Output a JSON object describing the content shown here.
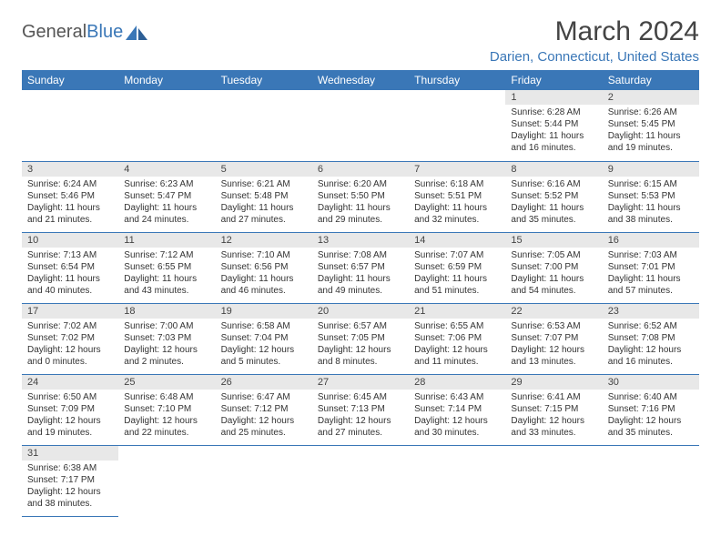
{
  "logo": {
    "text_general": "General",
    "text_blue": "Blue"
  },
  "title": "March 2024",
  "location": "Darien, Connecticut, United States",
  "weekdays": [
    "Sunday",
    "Monday",
    "Tuesday",
    "Wednesday",
    "Thursday",
    "Friday",
    "Saturday"
  ],
  "colors": {
    "accent": "#3a77b7",
    "header_bg": "#3a77b7",
    "day_bg": "#e8e8e8"
  },
  "weeks": [
    [
      null,
      null,
      null,
      null,
      null,
      {
        "n": "1",
        "sr": "Sunrise: 6:28 AM",
        "ss": "Sunset: 5:44 PM",
        "d1": "Daylight: 11 hours",
        "d2": "and 16 minutes."
      },
      {
        "n": "2",
        "sr": "Sunrise: 6:26 AM",
        "ss": "Sunset: 5:45 PM",
        "d1": "Daylight: 11 hours",
        "d2": "and 19 minutes."
      }
    ],
    [
      {
        "n": "3",
        "sr": "Sunrise: 6:24 AM",
        "ss": "Sunset: 5:46 PM",
        "d1": "Daylight: 11 hours",
        "d2": "and 21 minutes."
      },
      {
        "n": "4",
        "sr": "Sunrise: 6:23 AM",
        "ss": "Sunset: 5:47 PM",
        "d1": "Daylight: 11 hours",
        "d2": "and 24 minutes."
      },
      {
        "n": "5",
        "sr": "Sunrise: 6:21 AM",
        "ss": "Sunset: 5:48 PM",
        "d1": "Daylight: 11 hours",
        "d2": "and 27 minutes."
      },
      {
        "n": "6",
        "sr": "Sunrise: 6:20 AM",
        "ss": "Sunset: 5:50 PM",
        "d1": "Daylight: 11 hours",
        "d2": "and 29 minutes."
      },
      {
        "n": "7",
        "sr": "Sunrise: 6:18 AM",
        "ss": "Sunset: 5:51 PM",
        "d1": "Daylight: 11 hours",
        "d2": "and 32 minutes."
      },
      {
        "n": "8",
        "sr": "Sunrise: 6:16 AM",
        "ss": "Sunset: 5:52 PM",
        "d1": "Daylight: 11 hours",
        "d2": "and 35 minutes."
      },
      {
        "n": "9",
        "sr": "Sunrise: 6:15 AM",
        "ss": "Sunset: 5:53 PM",
        "d1": "Daylight: 11 hours",
        "d2": "and 38 minutes."
      }
    ],
    [
      {
        "n": "10",
        "sr": "Sunrise: 7:13 AM",
        "ss": "Sunset: 6:54 PM",
        "d1": "Daylight: 11 hours",
        "d2": "and 40 minutes."
      },
      {
        "n": "11",
        "sr": "Sunrise: 7:12 AM",
        "ss": "Sunset: 6:55 PM",
        "d1": "Daylight: 11 hours",
        "d2": "and 43 minutes."
      },
      {
        "n": "12",
        "sr": "Sunrise: 7:10 AM",
        "ss": "Sunset: 6:56 PM",
        "d1": "Daylight: 11 hours",
        "d2": "and 46 minutes."
      },
      {
        "n": "13",
        "sr": "Sunrise: 7:08 AM",
        "ss": "Sunset: 6:57 PM",
        "d1": "Daylight: 11 hours",
        "d2": "and 49 minutes."
      },
      {
        "n": "14",
        "sr": "Sunrise: 7:07 AM",
        "ss": "Sunset: 6:59 PM",
        "d1": "Daylight: 11 hours",
        "d2": "and 51 minutes."
      },
      {
        "n": "15",
        "sr": "Sunrise: 7:05 AM",
        "ss": "Sunset: 7:00 PM",
        "d1": "Daylight: 11 hours",
        "d2": "and 54 minutes."
      },
      {
        "n": "16",
        "sr": "Sunrise: 7:03 AM",
        "ss": "Sunset: 7:01 PM",
        "d1": "Daylight: 11 hours",
        "d2": "and 57 minutes."
      }
    ],
    [
      {
        "n": "17",
        "sr": "Sunrise: 7:02 AM",
        "ss": "Sunset: 7:02 PM",
        "d1": "Daylight: 12 hours",
        "d2": "and 0 minutes."
      },
      {
        "n": "18",
        "sr": "Sunrise: 7:00 AM",
        "ss": "Sunset: 7:03 PM",
        "d1": "Daylight: 12 hours",
        "d2": "and 2 minutes."
      },
      {
        "n": "19",
        "sr": "Sunrise: 6:58 AM",
        "ss": "Sunset: 7:04 PM",
        "d1": "Daylight: 12 hours",
        "d2": "and 5 minutes."
      },
      {
        "n": "20",
        "sr": "Sunrise: 6:57 AM",
        "ss": "Sunset: 7:05 PM",
        "d1": "Daylight: 12 hours",
        "d2": "and 8 minutes."
      },
      {
        "n": "21",
        "sr": "Sunrise: 6:55 AM",
        "ss": "Sunset: 7:06 PM",
        "d1": "Daylight: 12 hours",
        "d2": "and 11 minutes."
      },
      {
        "n": "22",
        "sr": "Sunrise: 6:53 AM",
        "ss": "Sunset: 7:07 PM",
        "d1": "Daylight: 12 hours",
        "d2": "and 13 minutes."
      },
      {
        "n": "23",
        "sr": "Sunrise: 6:52 AM",
        "ss": "Sunset: 7:08 PM",
        "d1": "Daylight: 12 hours",
        "d2": "and 16 minutes."
      }
    ],
    [
      {
        "n": "24",
        "sr": "Sunrise: 6:50 AM",
        "ss": "Sunset: 7:09 PM",
        "d1": "Daylight: 12 hours",
        "d2": "and 19 minutes."
      },
      {
        "n": "25",
        "sr": "Sunrise: 6:48 AM",
        "ss": "Sunset: 7:10 PM",
        "d1": "Daylight: 12 hours",
        "d2": "and 22 minutes."
      },
      {
        "n": "26",
        "sr": "Sunrise: 6:47 AM",
        "ss": "Sunset: 7:12 PM",
        "d1": "Daylight: 12 hours",
        "d2": "and 25 minutes."
      },
      {
        "n": "27",
        "sr": "Sunrise: 6:45 AM",
        "ss": "Sunset: 7:13 PM",
        "d1": "Daylight: 12 hours",
        "d2": "and 27 minutes."
      },
      {
        "n": "28",
        "sr": "Sunrise: 6:43 AM",
        "ss": "Sunset: 7:14 PM",
        "d1": "Daylight: 12 hours",
        "d2": "and 30 minutes."
      },
      {
        "n": "29",
        "sr": "Sunrise: 6:41 AM",
        "ss": "Sunset: 7:15 PM",
        "d1": "Daylight: 12 hours",
        "d2": "and 33 minutes."
      },
      {
        "n": "30",
        "sr": "Sunrise: 6:40 AM",
        "ss": "Sunset: 7:16 PM",
        "d1": "Daylight: 12 hours",
        "d2": "and 35 minutes."
      }
    ],
    [
      {
        "n": "31",
        "sr": "Sunrise: 6:38 AM",
        "ss": "Sunset: 7:17 PM",
        "d1": "Daylight: 12 hours",
        "d2": "and 38 minutes."
      },
      null,
      null,
      null,
      null,
      null,
      null
    ]
  ]
}
